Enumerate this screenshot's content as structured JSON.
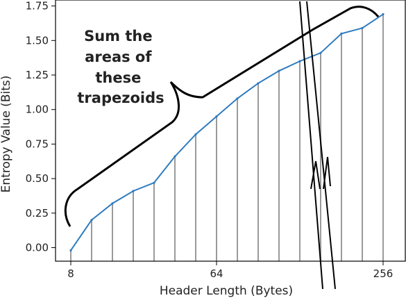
{
  "chart_data": {
    "type": "line",
    "title": "",
    "xlabel": "Header Length (Bytes)",
    "ylabel": "Entropy Value (Bits)",
    "x_tick_labels": [
      "8",
      "64",
      "256"
    ],
    "y_ticks": [
      0.0,
      0.25,
      0.5,
      0.75,
      1.0,
      1.25,
      1.5,
      1.75
    ],
    "y_tick_labels": [
      "0.00",
      "0.25",
      "0.50",
      "0.75",
      "1.00",
      "1.25",
      "1.50",
      "1.75"
    ],
    "ylim": [
      -0.05,
      1.75
    ],
    "grid": false,
    "x_index": [
      0,
      1,
      2,
      3,
      4,
      5,
      6,
      7,
      8,
      9,
      10,
      11,
      12,
      13,
      14,
      15
    ],
    "series": [
      {
        "values": [
          -0.02,
          0.2,
          0.32,
          0.41,
          0.47,
          0.66,
          0.82,
          0.95,
          1.08,
          1.19,
          1.28,
          1.35,
          1.41,
          1.55,
          1.59,
          1.69
        ]
      }
    ],
    "line_color": "#2f7bbf",
    "trapezoid_edge_color": "#9a9a9a",
    "annotation": {
      "lines": [
        "Sum the",
        "areas of",
        "these",
        "trapezoids"
      ]
    }
  }
}
